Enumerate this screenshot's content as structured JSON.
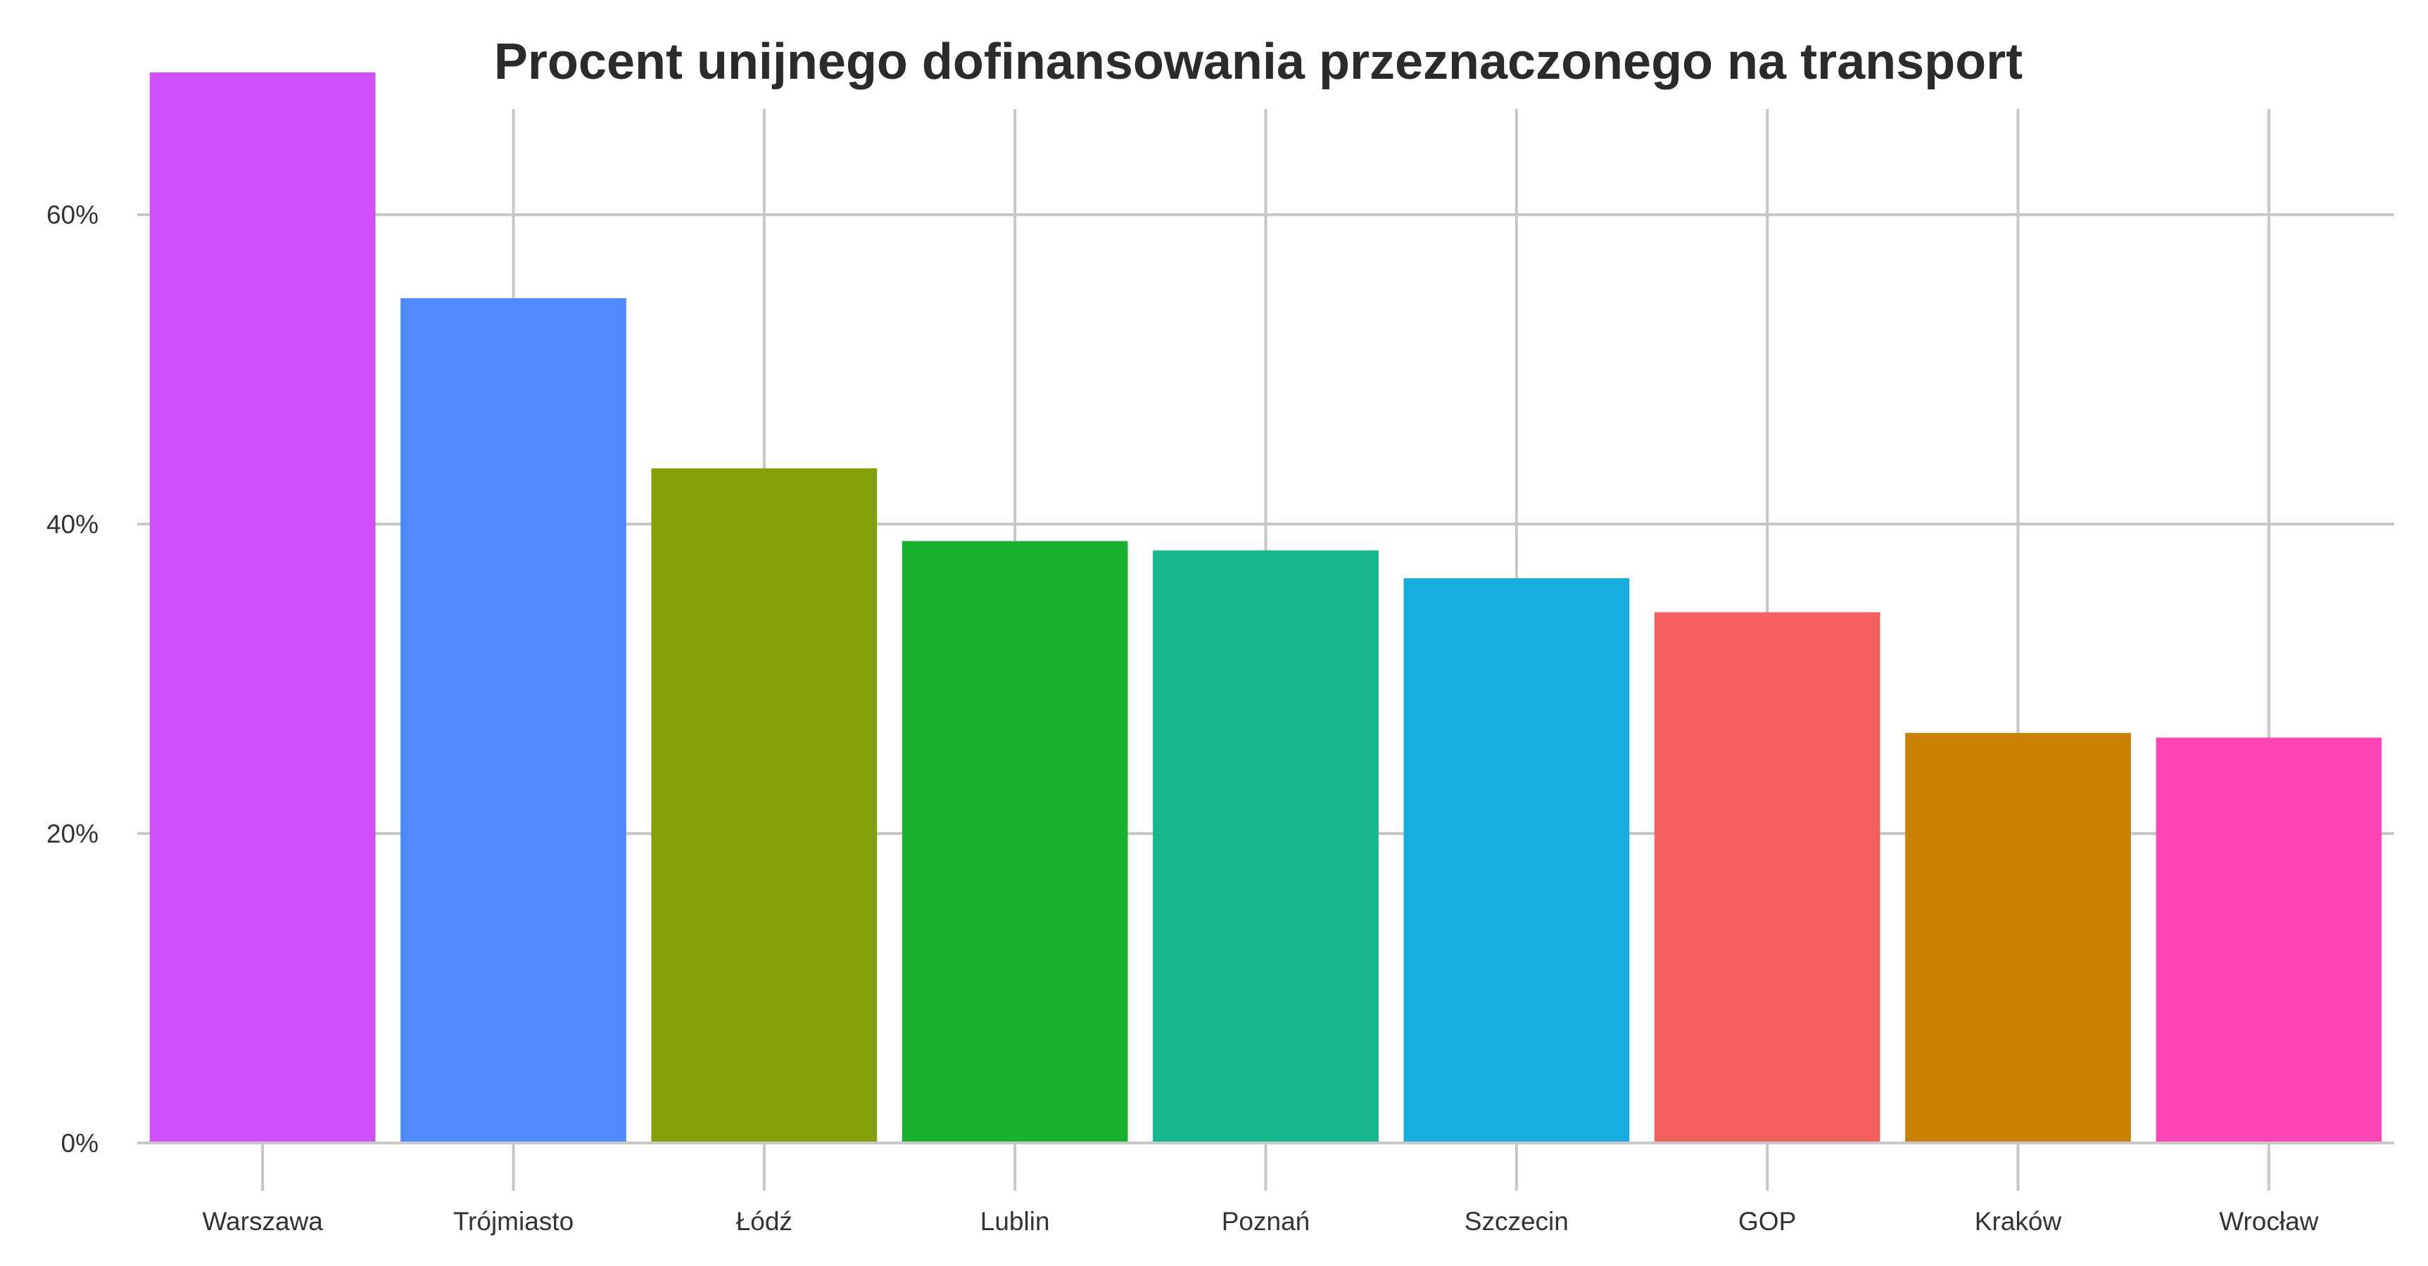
{
  "chart_data": {
    "type": "bar",
    "title": "Procent unijnego dofinansowania przeznaczonego na transport",
    "xlabel": "",
    "ylabel": "",
    "categories": [
      "Warszawa",
      "Trójmiasto",
      "Łódź",
      "Lublin",
      "Poznań",
      "Szczecin",
      "GOP",
      "Kraków",
      "Wrocław"
    ],
    "values": [
      69.2,
      54.6,
      43.6,
      38.9,
      38.3,
      36.5,
      34.3,
      26.5,
      26.2
    ],
    "colors": [
      "#CF51FB",
      "#5088FF",
      "#839F06",
      "#18B12E",
      "#18B68D",
      "#17ABDE",
      "#F35F5C",
      "#C88005",
      "#FF45B6"
    ],
    "ylim": [
      0,
      71
    ],
    "yticks": [
      0,
      20,
      40,
      60
    ],
    "ytick_labels": [
      "0%",
      "20%",
      "40%",
      "60%"
    ],
    "grid": true,
    "legend": "none"
  }
}
